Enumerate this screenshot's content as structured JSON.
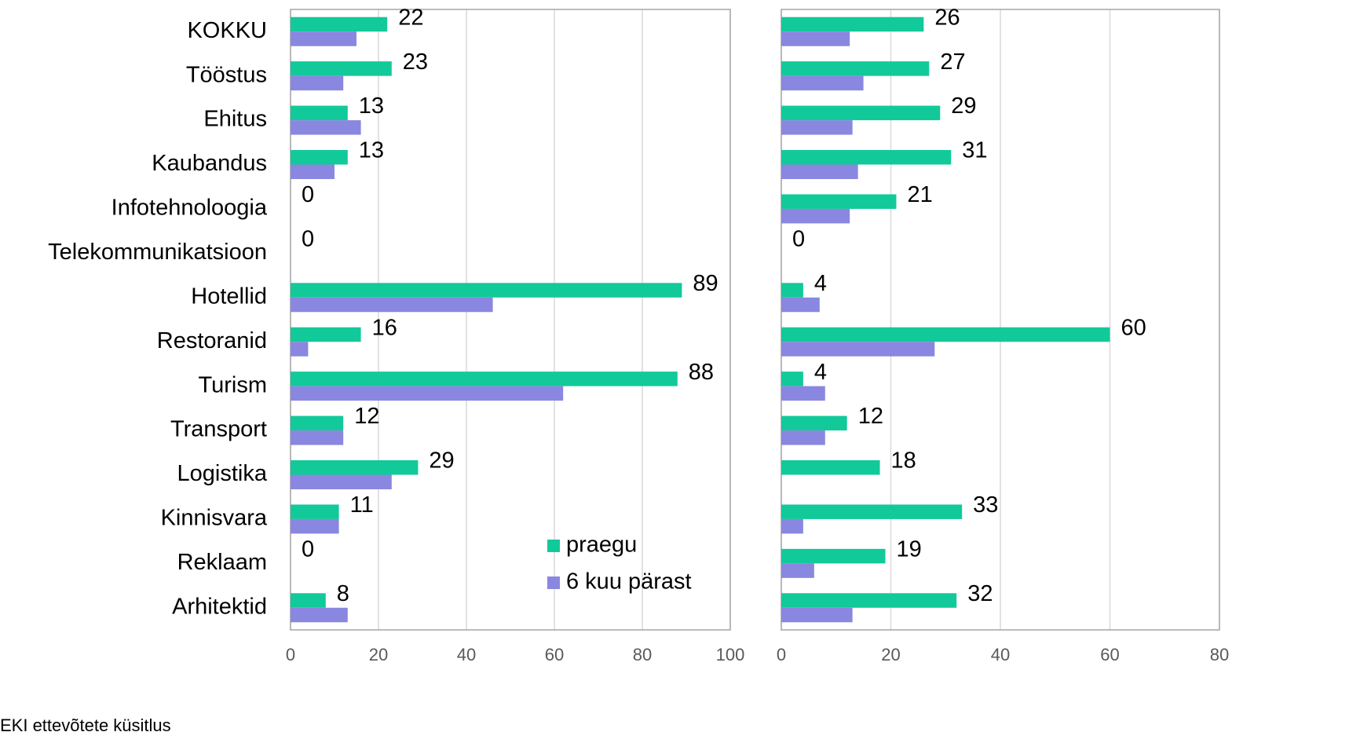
{
  "chart_data": [
    {
      "type": "hbar",
      "categories": [
        "KOKKU",
        "Tööstus",
        "Ehitus",
        "Kaubandus",
        "Infotehnoloogia",
        "Telekommunikatsioon",
        "Hotellid",
        "Restoranid",
        "Turism",
        "Transport",
        "Logistika",
        "Kinnisvara",
        "Reklaam",
        "Arhitektid"
      ],
      "series": [
        {
          "name": "praegu",
          "color": "#12c99a",
          "values": [
            22,
            23,
            13,
            13,
            0,
            0,
            89,
            16,
            88,
            12,
            29,
            11,
            0,
            8
          ],
          "labels": true
        },
        {
          "name": "6 kuu pärast",
          "color": "#8a87e0",
          "values": [
            15,
            12,
            16,
            10,
            0,
            0,
            46,
            4,
            62,
            12,
            23,
            11,
            0,
            13
          ]
        }
      ],
      "xlim": [
        0,
        100
      ],
      "xticks": [
        0,
        20,
        40,
        60,
        80,
        100
      ],
      "grid": true,
      "legend": "lower right"
    },
    {
      "type": "hbar",
      "series": [
        {
          "color": "#12c99a",
          "values": [
            26,
            27,
            29,
            31,
            21,
            0,
            4,
            60,
            4,
            12,
            18,
            33,
            19,
            32
          ],
          "labels": true
        },
        {
          "color": "#8a87e0",
          "values": [
            12.5,
            15,
            13,
            14,
            12.5,
            0,
            7,
            28,
            8,
            8,
            0,
            4,
            6,
            13
          ]
        }
      ],
      "xlim": [
        0,
        80
      ],
      "xticks": [
        0,
        20,
        40,
        60,
        80
      ],
      "grid": true
    }
  ],
  "source": "EKI ettevõtete küsitlus"
}
